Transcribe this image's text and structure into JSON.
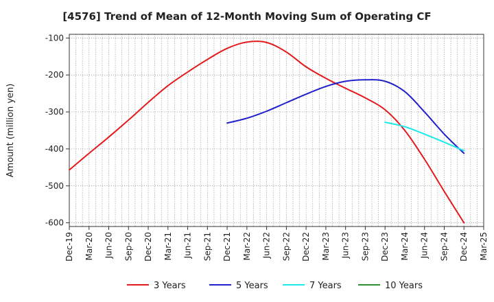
{
  "chart_data": {
    "type": "line",
    "title": "[4576]  Trend of Mean of 12-Month Moving Sum of Operating CF",
    "xlabel": "",
    "ylabel": "Amount (million yen)",
    "ylim": [
      -610,
      -90
    ],
    "yticks": [
      -100,
      -200,
      -300,
      -400,
      -500,
      -600
    ],
    "ytick_labels": [
      "-100",
      "-200",
      "-300",
      "-400",
      "-500",
      "-600"
    ],
    "x_categories": [
      "Dec-19",
      "Mar-20",
      "Jun-20",
      "Sep-20",
      "Dec-20",
      "Mar-21",
      "Jun-21",
      "Sep-21",
      "Dec-21",
      "Mar-22",
      "Jun-22",
      "Sep-22",
      "Dec-22",
      "Mar-23",
      "Jun-23",
      "Sep-23",
      "Dec-23",
      "Mar-24",
      "Jun-24",
      "Sep-24",
      "Dec-24",
      "Mar-25"
    ],
    "grid": true,
    "legend_position": "bottom",
    "series": [
      {
        "name": "3 Years",
        "color": "#e31a1c",
        "points": [
          [
            0,
            -457
          ],
          [
            1,
            -412
          ],
          [
            2,
            -368
          ],
          [
            3,
            -322
          ],
          [
            4,
            -274
          ],
          [
            5,
            -229
          ],
          [
            6,
            -192
          ],
          [
            7,
            -158
          ],
          [
            8,
            -128
          ],
          [
            9,
            -111
          ],
          [
            10,
            -112
          ],
          [
            11,
            -138
          ],
          [
            12,
            -178
          ],
          [
            13,
            -209
          ],
          [
            14,
            -236
          ],
          [
            15,
            -262
          ],
          [
            16,
            -294
          ],
          [
            17,
            -350
          ],
          [
            18,
            -428
          ],
          [
            19,
            -515
          ],
          [
            20,
            -600
          ]
        ]
      },
      {
        "name": "5 Years",
        "color": "#1f1fcc",
        "points": [
          [
            8,
            -330
          ],
          [
            9,
            -317
          ],
          [
            10,
            -298
          ],
          [
            11,
            -275
          ],
          [
            12,
            -252
          ],
          [
            13,
            -231
          ],
          [
            14,
            -217
          ],
          [
            15,
            -213
          ],
          [
            16,
            -217
          ],
          [
            17,
            -245
          ],
          [
            18,
            -300
          ],
          [
            19,
            -360
          ],
          [
            20,
            -412
          ]
        ]
      },
      {
        "name": "7 Years",
        "color": "#1ee8e8",
        "points": [
          [
            16,
            -328
          ],
          [
            17,
            -340
          ],
          [
            18,
            -360
          ],
          [
            19,
            -382
          ],
          [
            20,
            -405
          ]
        ]
      },
      {
        "name": "10 Years",
        "color": "#2e8b2e",
        "points": []
      }
    ]
  }
}
